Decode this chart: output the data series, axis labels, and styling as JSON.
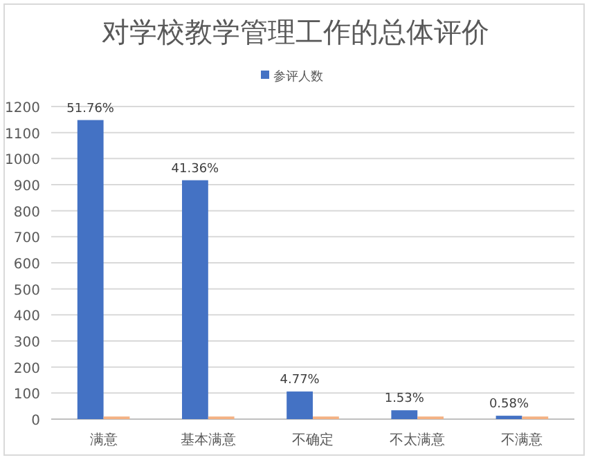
{
  "chart_data": {
    "type": "bar",
    "title": "对学校教学管理工作的总体评价",
    "categories": [
      "满意",
      "基本满意",
      "不确定",
      "不太满意",
      "不满意"
    ],
    "series": [
      {
        "name": "参评人数",
        "color": "#4472c4",
        "values": [
          1148,
          917,
          106,
          34,
          13
        ]
      },
      {
        "color": "#f4b183",
        "values": [
          10,
          10,
          10,
          10,
          10
        ]
      }
    ],
    "annotations": [
      {
        "text": "51.76%",
        "x": "满意",
        "y": 1148
      },
      {
        "text": "41.36%",
        "x": "基本满意",
        "y": 917
      },
      {
        "text": "4.77%",
        "x": "不确定",
        "y": 106
      },
      {
        "text": "1.53%",
        "x": "不太满意",
        "y": 34
      },
      {
        "text": "0.58%",
        "x": "不满意",
        "y": 13
      }
    ],
    "ylim": [
      0,
      1200
    ],
    "yticks": [
      0,
      100,
      200,
      300,
      400,
      500,
      600,
      700,
      800,
      900,
      1000,
      1100,
      1200
    ],
    "grid": "y",
    "legend": "top"
  }
}
